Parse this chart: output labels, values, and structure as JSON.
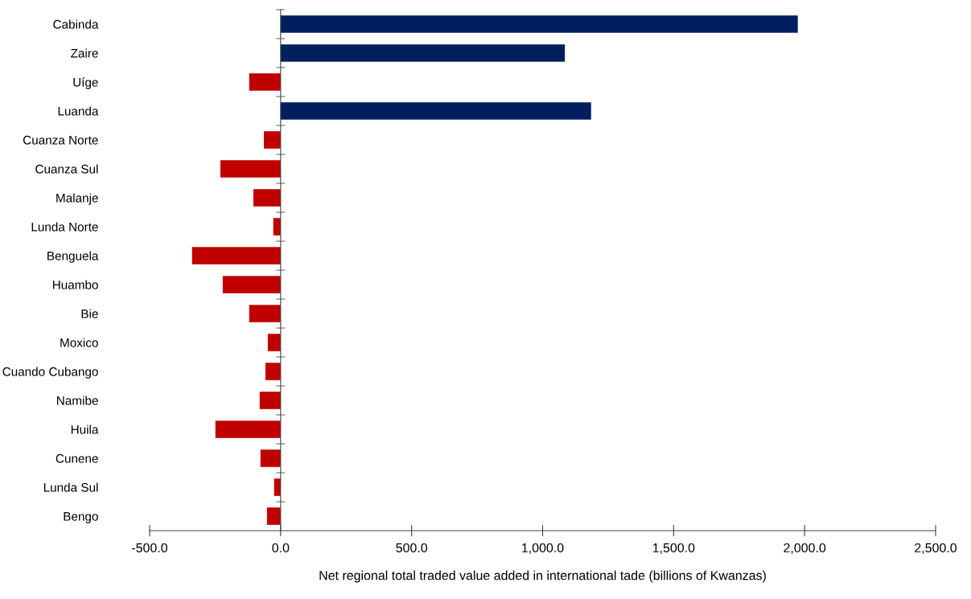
{
  "chart_data": {
    "type": "bar",
    "orientation": "horizontal",
    "xlabel": "Net regional total traded value added in international tade (billions of Kwanzas)",
    "categories": [
      "Cabinda",
      "Zaire",
      "Uíge",
      "Luanda",
      "Cuanza Norte",
      "Cuanza Sul",
      "Malanje",
      "Lunda Norte",
      "Benguela",
      "Huambo",
      "Bie",
      "Moxico",
      "Cuando Cubango",
      "Namibe",
      "Huila",
      "Cunene",
      "Lunda Sul",
      "Bengo"
    ],
    "values": [
      1974,
      1085,
      -120,
      1185,
      -64,
      -230,
      -104,
      -28,
      -338,
      -221,
      -120,
      -49,
      -58,
      -80,
      -249,
      -77,
      -25,
      -52
    ],
    "colors": [
      "#001f5f",
      "#001f5f",
      "#c00000",
      "#001f5f",
      "#c00000",
      "#c00000",
      "#c00000",
      "#c00000",
      "#c00000",
      "#c00000",
      "#c00000",
      "#c00000",
      "#c00000",
      "#c00000",
      "#c00000",
      "#c00000",
      "#c00000",
      "#c00000"
    ],
    "xlim": [
      -500,
      2500
    ],
    "xticks": [
      {
        "value": -500,
        "label": "-500.0"
      },
      {
        "value": 0,
        "label": "0.0"
      },
      {
        "value": 500,
        "label": "500.0"
      },
      {
        "value": 1000,
        "label": "1,000.0"
      },
      {
        "value": 1500,
        "label": "1,500.0"
      },
      {
        "value": 2000,
        "label": "2,000.0"
      },
      {
        "value": 2500,
        "label": "2,500.0"
      }
    ],
    "legend": false
  }
}
